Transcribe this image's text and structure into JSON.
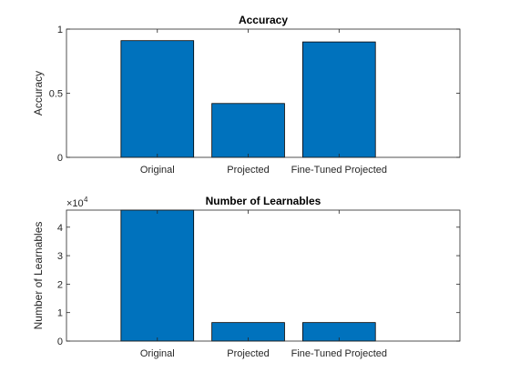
{
  "chart_data": [
    {
      "type": "bar",
      "title": "Accuracy",
      "xlabel": "",
      "ylabel": "Accuracy",
      "categories": [
        "Original",
        "Projected",
        "Fine-Tuned Projected"
      ],
      "values": [
        0.91,
        0.42,
        0.9
      ],
      "ylim": [
        0,
        1
      ],
      "yticks": [
        0,
        0.5,
        1
      ],
      "ytick_labels": [
        "0",
        "0.5",
        "1"
      ],
      "bar_color": "#0072BD",
      "grid": false
    },
    {
      "type": "bar",
      "title": "Number of Learnables",
      "xlabel": "",
      "ylabel": "Number of Learnables",
      "categories": [
        "Original",
        "Projected",
        "Fine-Tuned Projected"
      ],
      "values": [
        46000,
        6500,
        6500
      ],
      "ylim": [
        0,
        46000
      ],
      "yticks": [
        0,
        10000,
        20000,
        30000,
        40000
      ],
      "ytick_labels": [
        "0",
        "1",
        "2",
        "3",
        "4"
      ],
      "exponent_base": "×10",
      "exponent_power": "4",
      "bar_color": "#0072BD",
      "grid": false
    }
  ]
}
